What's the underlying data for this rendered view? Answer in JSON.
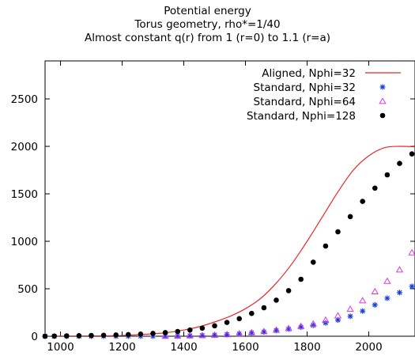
{
  "title_lines": [
    "Potential energy",
    "Torus geometry, rho*=1/40",
    "Almost constant q(r) from 1 (r=0) to 1.1 (r=a)"
  ],
  "chart_data": {
    "type": "scatter",
    "title": "Potential energy",
    "subtitle": "Torus geometry, rho*=1/40 / Almost constant q(r) from 1 (r=0) to 1.1 (r=a)",
    "xlabel": "",
    "ylabel": "",
    "xlim": [
      950,
      2150
    ],
    "ylim": [
      0,
      2900
    ],
    "xticks": [
      "1000",
      "1200",
      "1400",
      "1600",
      "1800",
      "2000"
    ],
    "yticks": [
      "0",
      "500",
      "1000",
      "1500",
      "2000",
      "2500"
    ],
    "legend_position": "top-right",
    "grid": false,
    "series": [
      {
        "name": "Aligned, Nphi=32",
        "style": "line",
        "color": "#e8282d",
        "x": [
          950,
          1000,
          1100,
          1200,
          1300,
          1350,
          1400,
          1450,
          1500,
          1550,
          1600,
          1650,
          1700,
          1750,
          1800,
          1850,
          1900,
          1950,
          2000,
          2050,
          2100,
          2150
        ],
        "y": [
          0,
          1,
          3,
          8,
          25,
          40,
          65,
          100,
          150,
          210,
          290,
          400,
          560,
          760,
          1000,
          1260,
          1520,
          1750,
          1900,
          1985,
          2000,
          1995
        ]
      },
      {
        "name": "Standard, Nphi=32",
        "style": "star",
        "color": "#1a3fe0",
        "x": [
          950,
          980,
          1020,
          1060,
          1100,
          1140,
          1180,
          1220,
          1260,
          1300,
          1340,
          1380,
          1420,
          1460,
          1500,
          1540,
          1580,
          1620,
          1660,
          1700,
          1740,
          1780,
          1820,
          1860,
          1900,
          1940,
          1980,
          2020,
          2060,
          2100,
          2140
        ],
        "y": [
          0,
          0,
          0,
          0,
          0,
          0,
          0,
          0,
          0,
          0,
          0,
          2,
          5,
          8,
          12,
          18,
          25,
          35,
          45,
          60,
          75,
          95,
          115,
          140,
          170,
          210,
          265,
          330,
          400,
          460,
          525
        ]
      },
      {
        "name": "Standard, Nphi=64",
        "style": "triangle",
        "color": "#d83ae0",
        "x": [
          1340,
          1380,
          1420,
          1460,
          1500,
          1540,
          1580,
          1620,
          1660,
          1700,
          1740,
          1780,
          1820,
          1860,
          1900,
          1940,
          1980,
          2020,
          2060,
          2100,
          2140
        ],
        "y": [
          1,
          2,
          5,
          8,
          12,
          18,
          27,
          38,
          50,
          65,
          82,
          105,
          130,
          170,
          215,
          285,
          375,
          470,
          580,
          700,
          880
        ]
      },
      {
        "name": "Standard, Nphi=128",
        "style": "dot",
        "color": "#000000",
        "x": [
          950,
          980,
          1020,
          1060,
          1100,
          1140,
          1180,
          1220,
          1260,
          1300,
          1340,
          1380,
          1420,
          1460,
          1500,
          1540,
          1580,
          1620,
          1660,
          1700,
          1740,
          1780,
          1820,
          1860,
          1900,
          1940,
          1980,
          2020,
          2060,
          2100,
          2140
        ],
        "y": [
          0,
          2,
          4,
          6,
          8,
          10,
          13,
          17,
          22,
          30,
          38,
          50,
          65,
          85,
          110,
          145,
          185,
          240,
          300,
          380,
          480,
          600,
          780,
          950,
          1100,
          1260,
          1420,
          1560,
          1700,
          1820,
          1920
        ]
      }
    ]
  }
}
